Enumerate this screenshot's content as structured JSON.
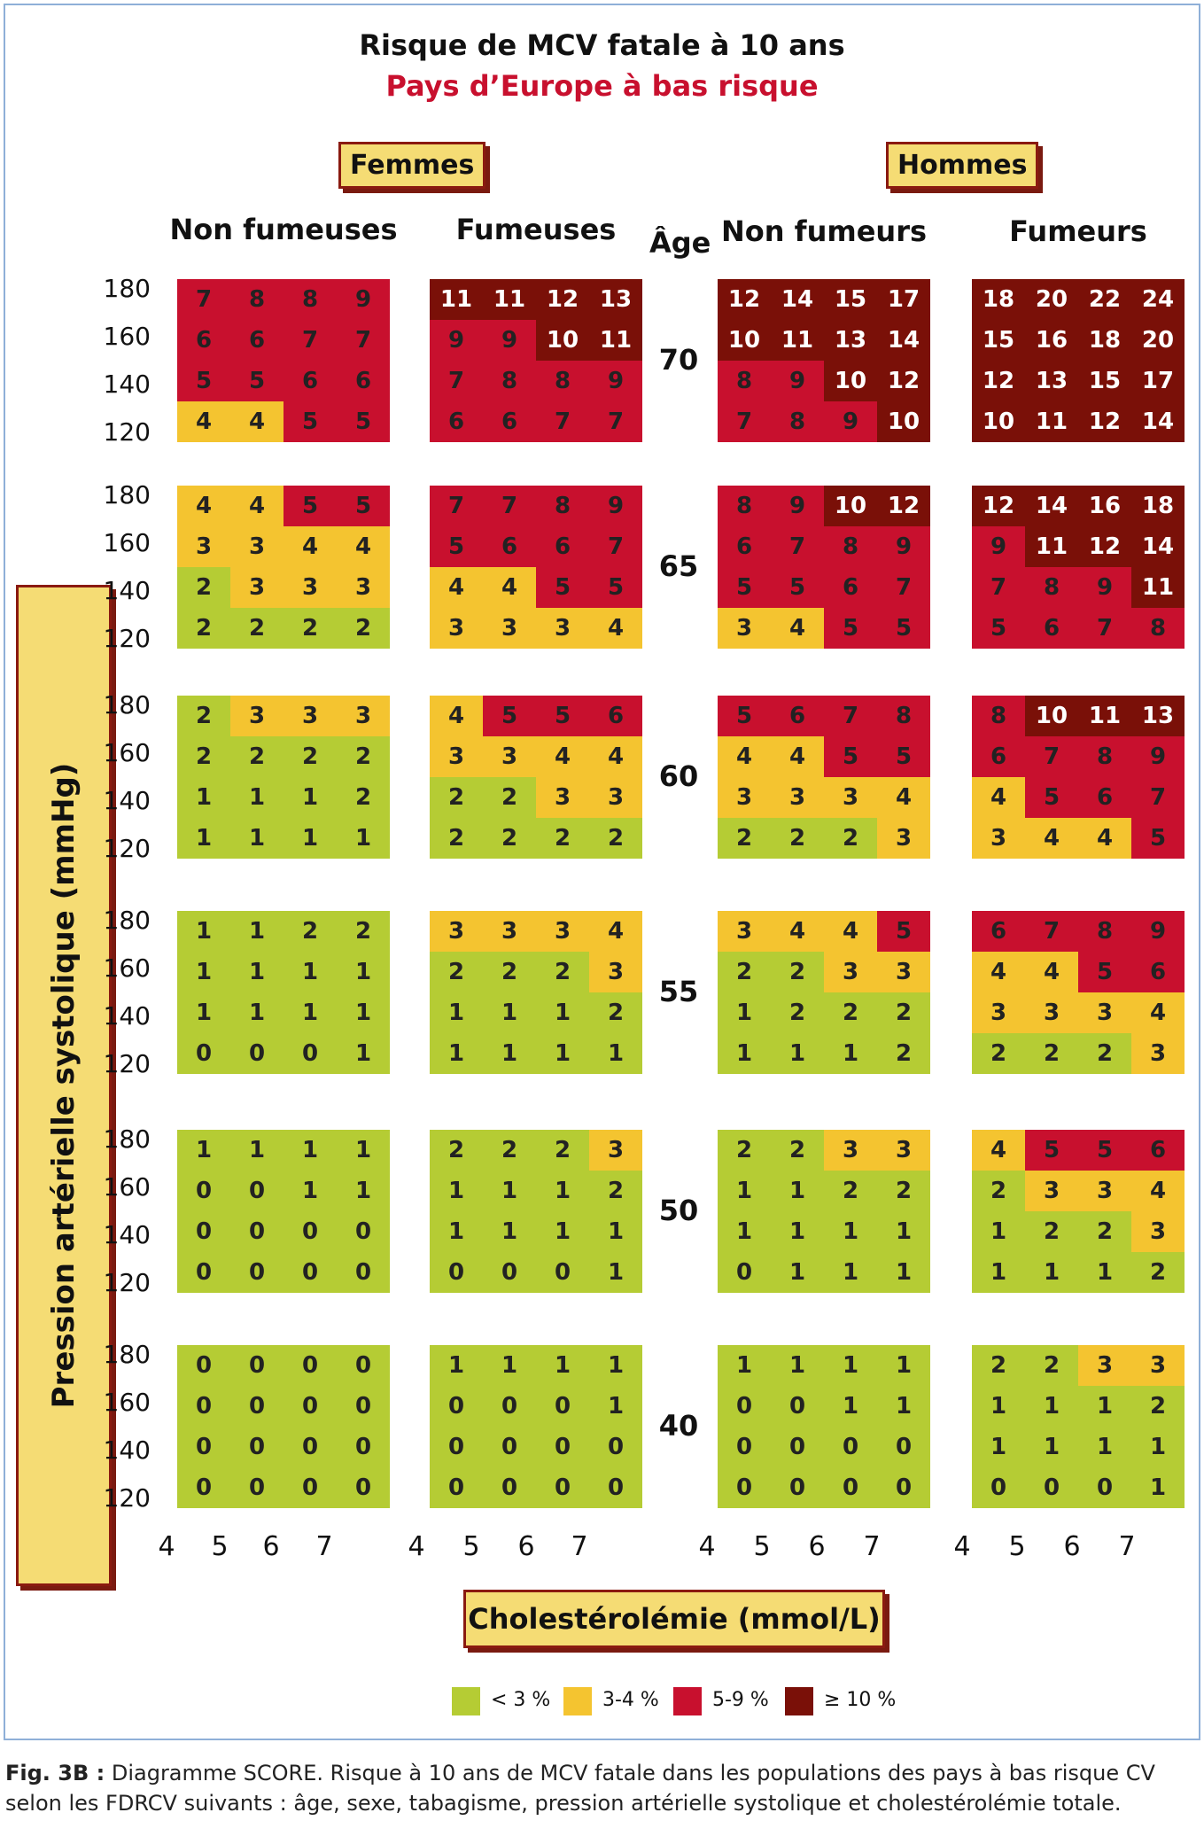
{
  "title": "Risque de MCV fatale à 10 ans",
  "subtitle": "Pays d’Europe à bas risque",
  "sex_labels": {
    "women": "Femmes",
    "men": "Hommes"
  },
  "age_header": "Âge",
  "y_axis_label": "Pression artérielle systolique (mmHg)",
  "x_axis_label": "Cholestérolémie (mmol/L)",
  "colors": {
    "lt3": "#b5cc34",
    "r3_4": "#f4c430",
    "r5_9": "#c8102e",
    "ge10": "#7a1008"
  },
  "legend": [
    {
      "label": "< 3 %",
      "color": "#b5cc34"
    },
    {
      "label": "3-4 %",
      "color": "#f4c430"
    },
    {
      "label": "5-9 %",
      "color": "#c8102e"
    },
    {
      "label": "≥ 10 %",
      "color": "#7a1008"
    }
  ],
  "caption": {
    "prefix": "Fig. 3B :",
    "text": " Diagramme SCORE. Risque à 10 ans de MCV fatale dans les populations des pays à bas risque CV selon les FDRCV suivants : âge, sexe, tabagisme, pression artérielle systolique et cholestérolémie totale."
  },
  "chart_data": {
    "type": "heatmap",
    "title": "Risque de MCV fatale à 10 ans",
    "subtitle": "Pays d’Europe à bas risque",
    "xlabel": "Cholestérolémie (mmol/L)",
    "ylabel": "Pression artérielle systolique (mmHg)",
    "cholesterol_ticks": [
      "4",
      "5",
      "6",
      "7"
    ],
    "sbp_ticks": [
      "180",
      "160",
      "140",
      "120"
    ],
    "ages": [
      "70",
      "65",
      "60",
      "55",
      "50",
      "40"
    ],
    "groups": [
      {
        "sex": "Femmes",
        "header": "Non fumeuses",
        "grids": [
          [
            [
              7,
              8,
              8,
              9
            ],
            [
              6,
              6,
              7,
              7
            ],
            [
              5,
              5,
              6,
              6
            ],
            [
              4,
              4,
              5,
              5
            ]
          ],
          [
            [
              4,
              4,
              5,
              5
            ],
            [
              3,
              3,
              4,
              4
            ],
            [
              2,
              3,
              3,
              3
            ],
            [
              2,
              2,
              2,
              2
            ]
          ],
          [
            [
              2,
              3,
              3,
              3
            ],
            [
              2,
              2,
              2,
              2
            ],
            [
              1,
              1,
              1,
              2
            ],
            [
              1,
              1,
              1,
              1
            ]
          ],
          [
            [
              1,
              1,
              2,
              2
            ],
            [
              1,
              1,
              1,
              1
            ],
            [
              1,
              1,
              1,
              1
            ],
            [
              0,
              0,
              0,
              1
            ]
          ],
          [
            [
              1,
              1,
              1,
              1
            ],
            [
              0,
              0,
              1,
              1
            ],
            [
              0,
              0,
              0,
              0
            ],
            [
              0,
              0,
              0,
              0
            ]
          ],
          [
            [
              0,
              0,
              0,
              0
            ],
            [
              0,
              0,
              0,
              0
            ],
            [
              0,
              0,
              0,
              0
            ],
            [
              0,
              0,
              0,
              0
            ]
          ]
        ]
      },
      {
        "sex": "Femmes",
        "header": "Fumeuses",
        "grids": [
          [
            [
              11,
              11,
              12,
              13
            ],
            [
              9,
              9,
              10,
              11
            ],
            [
              7,
              8,
              8,
              9
            ],
            [
              6,
              6,
              7,
              7
            ]
          ],
          [
            [
              7,
              7,
              8,
              9
            ],
            [
              5,
              6,
              6,
              7
            ],
            [
              4,
              4,
              5,
              5
            ],
            [
              3,
              3,
              3,
              4
            ]
          ],
          [
            [
              4,
              5,
              5,
              6
            ],
            [
              3,
              3,
              4,
              4
            ],
            [
              2,
              2,
              3,
              3
            ],
            [
              2,
              2,
              2,
              2
            ]
          ],
          [
            [
              3,
              3,
              3,
              4
            ],
            [
              2,
              2,
              2,
              3
            ],
            [
              1,
              1,
              1,
              2
            ],
            [
              1,
              1,
              1,
              1
            ]
          ],
          [
            [
              2,
              2,
              2,
              3
            ],
            [
              1,
              1,
              1,
              2
            ],
            [
              1,
              1,
              1,
              1
            ],
            [
              0,
              0,
              0,
              1
            ]
          ],
          [
            [
              1,
              1,
              1,
              1
            ],
            [
              0,
              0,
              0,
              1
            ],
            [
              0,
              0,
              0,
              0
            ],
            [
              0,
              0,
              0,
              0
            ]
          ]
        ]
      },
      {
        "sex": "Hommes",
        "header": "Non fumeurs",
        "grids": [
          [
            [
              12,
              14,
              15,
              17
            ],
            [
              10,
              11,
              13,
              14
            ],
            [
              8,
              9,
              10,
              12
            ],
            [
              7,
              8,
              9,
              10
            ]
          ],
          [
            [
              8,
              9,
              10,
              12
            ],
            [
              6,
              7,
              8,
              9
            ],
            [
              5,
              5,
              6,
              7
            ],
            [
              3,
              4,
              5,
              5
            ]
          ],
          [
            [
              5,
              6,
              7,
              8
            ],
            [
              4,
              4,
              5,
              5
            ],
            [
              3,
              3,
              3,
              4
            ],
            [
              2,
              2,
              2,
              3
            ]
          ],
          [
            [
              3,
              4,
              4,
              5
            ],
            [
              2,
              2,
              3,
              3
            ],
            [
              1,
              2,
              2,
              2
            ],
            [
              1,
              1,
              1,
              2
            ]
          ],
          [
            [
              2,
              2,
              3,
              3
            ],
            [
              1,
              1,
              2,
              2
            ],
            [
              1,
              1,
              1,
              1
            ],
            [
              0,
              1,
              1,
              1
            ]
          ],
          [
            [
              1,
              1,
              1,
              1
            ],
            [
              0,
              0,
              1,
              1
            ],
            [
              0,
              0,
              0,
              0
            ],
            [
              0,
              0,
              0,
              0
            ]
          ]
        ]
      },
      {
        "sex": "Hommes",
        "header": "Fumeurs",
        "grids": [
          [
            [
              18,
              20,
              22,
              24
            ],
            [
              15,
              16,
              18,
              20
            ],
            [
              12,
              13,
              15,
              17
            ],
            [
              10,
              11,
              12,
              14
            ]
          ],
          [
            [
              12,
              14,
              16,
              18
            ],
            [
              9,
              11,
              12,
              14
            ],
            [
              7,
              8,
              9,
              11
            ],
            [
              5,
              6,
              7,
              8
            ]
          ],
          [
            [
              8,
              10,
              11,
              13
            ],
            [
              6,
              7,
              8,
              9
            ],
            [
              4,
              5,
              6,
              7
            ],
            [
              3,
              4,
              4,
              5
            ]
          ],
          [
            [
              6,
              7,
              8,
              9
            ],
            [
              4,
              4,
              5,
              6
            ],
            [
              3,
              3,
              3,
              4
            ],
            [
              2,
              2,
              2,
              3
            ]
          ],
          [
            [
              4,
              5,
              5,
              6
            ],
            [
              2,
              3,
              3,
              4
            ],
            [
              1,
              2,
              2,
              3
            ],
            [
              1,
              1,
              1,
              2
            ]
          ],
          [
            [
              2,
              2,
              3,
              3
            ],
            [
              1,
              1,
              1,
              2
            ],
            [
              1,
              1,
              1,
              1
            ],
            [
              0,
              0,
              0,
              1
            ]
          ]
        ]
      }
    ]
  }
}
